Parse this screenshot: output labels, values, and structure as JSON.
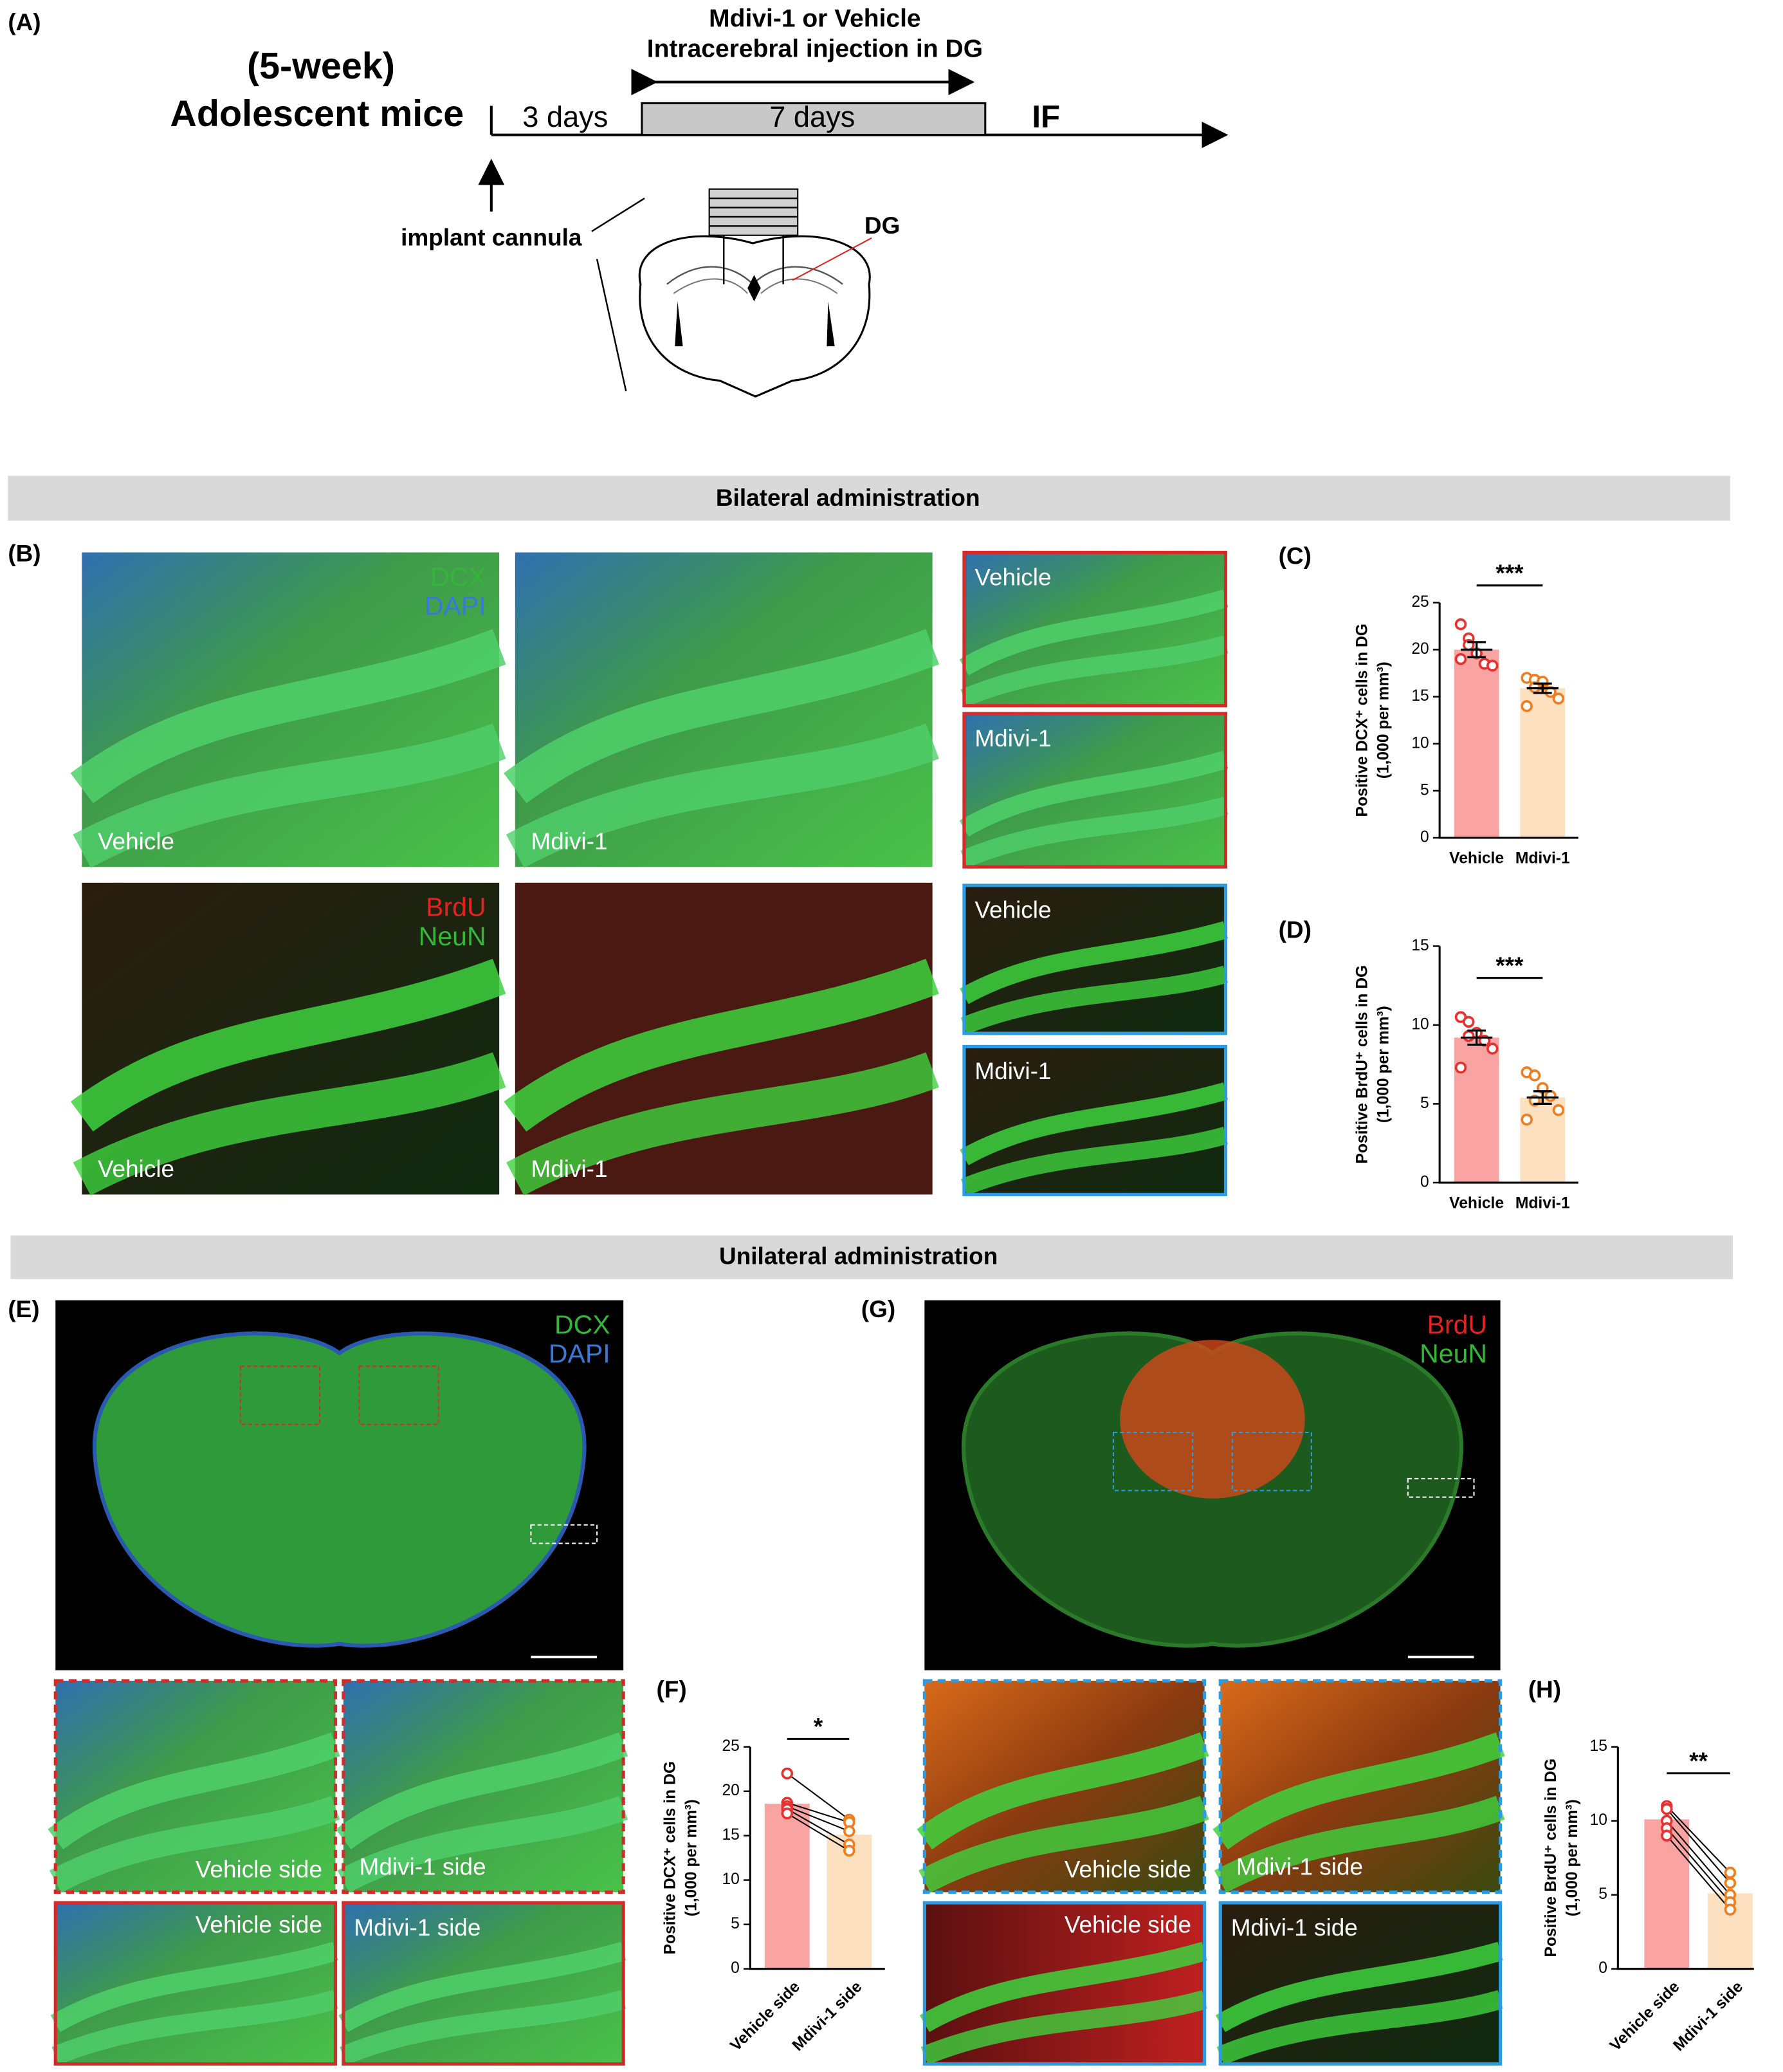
{
  "panel_labels": [
    "(A)",
    "(B)",
    "(C)",
    "(D)",
    "(E)",
    "(F)",
    "(G)",
    "(H)"
  ],
  "schematic": {
    "age": "(5-week)",
    "subject": "Adolescent mice",
    "period1": "3 days",
    "period2": "7 days",
    "endpoint": "IF",
    "treatment": "Mdivi-1 or Vehicle",
    "route": "Intracerebral injection in DG",
    "surgery": "implant cannula",
    "region": "DG"
  },
  "sections": [
    "Bilateral administration",
    "Unilateral administration"
  ],
  "micrographs": [
    {
      "stains": [
        {
          "name": "DCX",
          "color": "#35b53a"
        },
        {
          "name": "DAPI",
          "color": "#3a78d8"
        }
      ],
      "label": "Vehicle"
    },
    {
      "label": "Mdivi-1"
    },
    {
      "label": "Vehicle"
    },
    {
      "label": "Mdivi-1"
    },
    {
      "stains": [
        {
          "name": "BrdU",
          "color": "#e32222"
        },
        {
          "name": "NeuN",
          "color": "#35b53a"
        }
      ],
      "label": "Vehicle"
    },
    {
      "label": "Mdivi-1"
    },
    {
      "label": "Vehicle"
    },
    {
      "label": "Mdivi-1"
    },
    {
      "stains": [
        {
          "name": "DCX",
          "color": "#35b53a"
        },
        {
          "name": "DAPI",
          "color": "#3a78d8"
        }
      ]
    },
    {
      "label": "Vehicle side"
    },
    {
      "label": "Mdivi-1 side"
    },
    {
      "label": "Vehicle side"
    },
    {
      "label": "Mdivi-1 side"
    },
    {
      "stains": [
        {
          "name": "BrdU",
          "color": "#e32222"
        },
        {
          "name": "NeuN",
          "color": "#35b53a"
        }
      ]
    },
    {
      "label": "Vehicle side"
    },
    {
      "label": "Mdivi-1 side"
    },
    {
      "label": "Vehicle side"
    },
    {
      "label": "Mdivi-1 side"
    }
  ],
  "chart_data": [
    {
      "type": "bar",
      "ylabel": [
        "Positive DCX⁺ cells in DG",
        "(1,000 per mm³)"
      ],
      "categories": [
        "Vehicle",
        "Mdivi-1"
      ],
      "values": [
        20,
        15.9
      ],
      "errors": [
        0.8,
        0.5
      ],
      "colors": [
        "#f9a3a3",
        "#fde0bf"
      ],
      "point_colors": [
        "#e8312f",
        "#f07d1e"
      ],
      "points": [
        [
          22.7,
          21.2,
          19.6,
          18.5,
          18.3,
          19.0,
          20.5
        ],
        [
          17.0,
          16.8,
          16.3,
          15.5,
          14.8,
          14.0,
          16.0,
          16.6
        ]
      ],
      "paired": false,
      "ylim": [
        0,
        25
      ],
      "yticks": [
        0,
        5,
        10,
        15,
        20,
        25
      ],
      "significance": "***"
    },
    {
      "type": "bar",
      "ylabel": [
        "Positive BrdU⁺ cells in DG",
        "(1,000 per mm³)"
      ],
      "categories": [
        "Vehicle",
        "Mdivi-1"
      ],
      "values": [
        9.2,
        5.4
      ],
      "errors": [
        0.45,
        0.4
      ],
      "colors": [
        "#f9a3a3",
        "#fde0bf"
      ],
      "point_colors": [
        "#e8312f",
        "#f07d1e"
      ],
      "points": [
        [
          10.5,
          10.2,
          9.5,
          9.0,
          8.5,
          7.3,
          9.3
        ],
        [
          7.0,
          6.8,
          6.0,
          5.5,
          4.6,
          4.0,
          5.2
        ]
      ],
      "paired": false,
      "ylim": [
        0,
        15
      ],
      "yticks": [
        0,
        5,
        10,
        15
      ],
      "significance": "***"
    },
    {
      "type": "bar",
      "ylabel": [
        "Positive DCX⁺ cells in DG",
        "(1,000 per mm³)"
      ],
      "categories": [
        "Vehicle side",
        "Mdivi-1 side"
      ],
      "values": [
        18.6,
        15.1
      ],
      "colors": [
        "#f9a3a3",
        "#fde0bf"
      ],
      "point_colors": [
        "#e8312f",
        "#f07d1e"
      ],
      "points": [
        [
          22.0,
          18.7,
          18.3,
          18.0,
          17.5
        ],
        [
          16.8,
          16.5,
          15.5,
          14.0,
          13.3
        ]
      ],
      "paired": true,
      "ylim": [
        0,
        25
      ],
      "yticks": [
        0,
        5,
        10,
        15,
        20,
        25
      ],
      "significance": "*"
    },
    {
      "type": "bar",
      "ylabel": [
        "Positive BrdU⁺ cells in DG",
        "(1,000 per mm³)"
      ],
      "categories": [
        "Vehicle side",
        "Mdivi-1 side"
      ],
      "values": [
        10.1,
        5.1
      ],
      "colors": [
        "#f9a3a3",
        "#fde0bf"
      ],
      "point_colors": [
        "#e8312f",
        "#f07d1e"
      ],
      "points": [
        [
          11.0,
          10.8,
          10.0,
          9.5,
          9.0
        ],
        [
          6.5,
          5.8,
          5.0,
          4.5,
          4.0
        ]
      ],
      "paired": true,
      "ylim": [
        0,
        15
      ],
      "yticks": [
        0,
        5,
        10,
        15
      ],
      "significance": "**"
    }
  ]
}
